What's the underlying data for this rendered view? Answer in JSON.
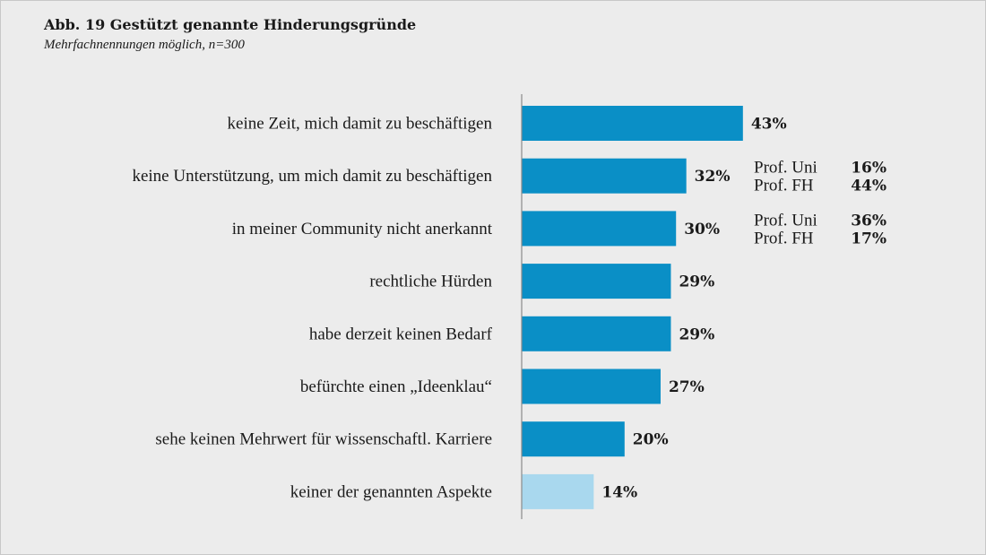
{
  "chart_data": {
    "type": "bar",
    "orientation": "horizontal",
    "title": "Abb. 19 Gestützt genannte Hinderungsgründe",
    "subtitle": "Mehrfachnennungen möglich, n=300",
    "categories": [
      "keine Zeit, mich damit zu beschäftigen",
      "keine Unterstützung, um mich damit zu beschäftigen",
      "in meiner Community nicht anerkannt",
      "rechtliche Hürden",
      "habe derzeit keinen Bedarf",
      "befürchte einen „Ideenklau“",
      "sehe keinen Mehrwert für wissenschaftl. Karriere",
      "keiner der genannten Aspekte"
    ],
    "values": [
      43,
      32,
      30,
      29,
      29,
      27,
      20,
      14
    ],
    "value_labels": [
      "43%",
      "32%",
      "30%",
      "29%",
      "29%",
      "27%",
      "20%",
      "14%"
    ],
    "xlim": [
      0,
      100
    ],
    "grid": false,
    "legend": "none",
    "colors": {
      "bar": "#0a8fc6",
      "bar_highlight": "#a9d8ee",
      "axis": "#8a8a8a"
    },
    "highlight_index": 7,
    "annotations": [
      {
        "category_index": 1,
        "lines": [
          {
            "label": "Prof. Uni",
            "value": "16%"
          },
          {
            "label": "Prof. FH",
            "value": "44%"
          }
        ]
      },
      {
        "category_index": 2,
        "lines": [
          {
            "label": "Prof. Uni",
            "value": "36%"
          },
          {
            "label": "Prof. FH",
            "value": "17%"
          }
        ]
      }
    ]
  }
}
